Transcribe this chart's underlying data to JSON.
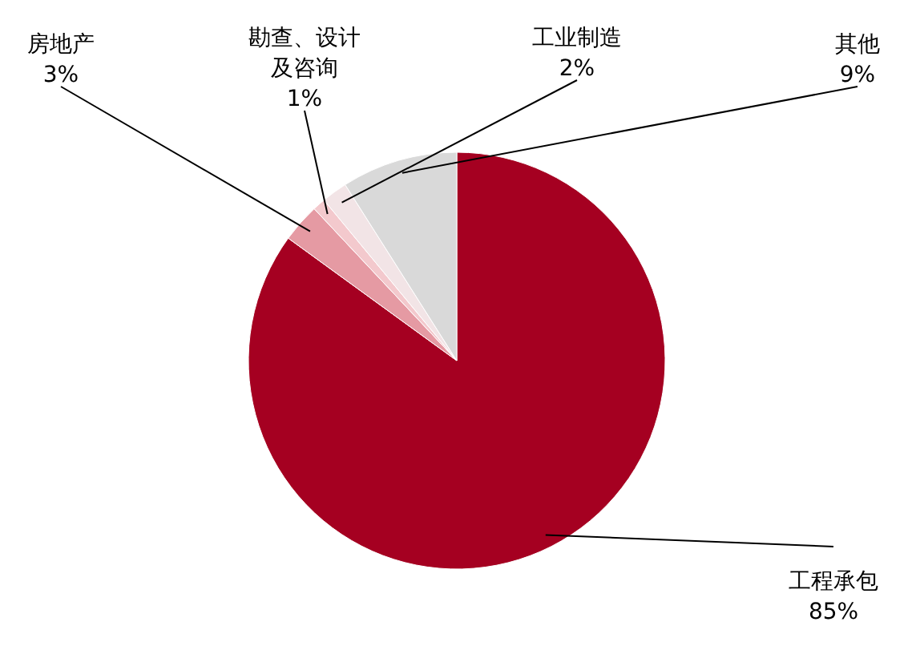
{
  "chart_data": {
    "type": "pie",
    "categories": [
      "工程承包",
      "房地产",
      "勘查、设计及咨询",
      "工业制造",
      "其他"
    ],
    "values": [
      85,
      3,
      1,
      2,
      9
    ],
    "value_labels": [
      "85%",
      "3%",
      "1%",
      "2%",
      "9%"
    ],
    "colors": [
      "#a50021",
      "#e59aa3",
      "#f3c9cd",
      "#f2e4e6",
      "#d9d9d9"
    ]
  }
}
